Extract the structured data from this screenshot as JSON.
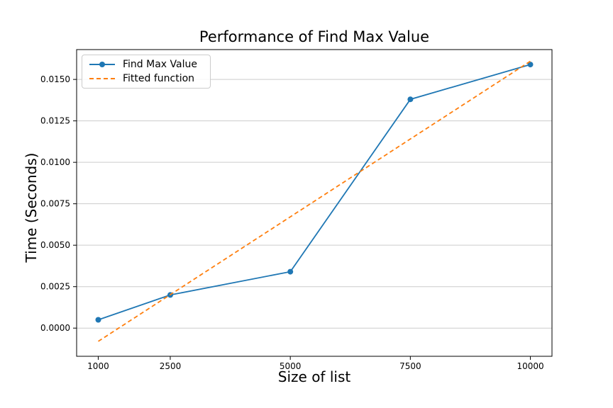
{
  "chart_data": {
    "type": "line",
    "title": "Performance of Find Max Value",
    "xlabel": "Size of list",
    "ylabel": "Time (Seconds)",
    "xlim": [
      550,
      10450
    ],
    "ylim": [
      -0.0017,
      0.0168
    ],
    "x_ticks": [
      1000,
      2500,
      5000,
      7500,
      10000
    ],
    "y_ticks": [
      0.0,
      0.0025,
      0.005,
      0.0075,
      0.01,
      0.0125,
      0.015
    ],
    "y_tick_decimals": 4,
    "grid": "horizontal",
    "grid_color": "#cccccc",
    "spine_color": "#000000",
    "legend_position": "upper-left",
    "series": [
      {
        "name": "Find Max Value",
        "color": "#1f77b4",
        "style": "solid",
        "marker": "circle",
        "x": [
          1000,
          2500,
          5000,
          7500,
          10000
        ],
        "y": [
          0.0005,
          0.002,
          0.0034,
          0.0138,
          0.0159
        ]
      },
      {
        "name": "Fitted function",
        "color": "#ff7f0e",
        "style": "dashed",
        "marker": "none",
        "x": [
          1000,
          10000
        ],
        "y": [
          -0.0008,
          0.0161
        ]
      }
    ]
  }
}
